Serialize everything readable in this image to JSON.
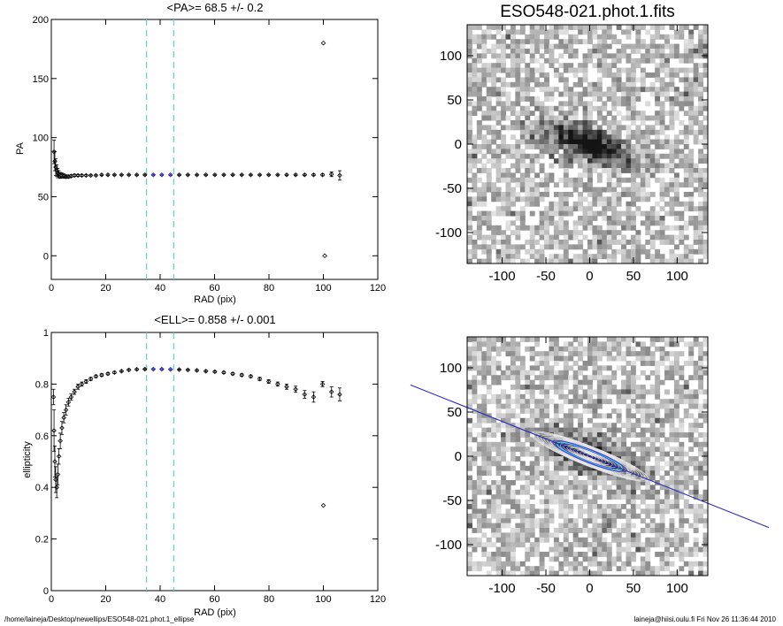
{
  "footer": {
    "path": "/home/laineja/Desktop/newellips/ESO548-021.phot.1_ellipse",
    "stamp": "laineja@hiisi.oulu.fi  Fri Nov 26 11:36:44 2010"
  },
  "chart_data": [
    {
      "type": "scatter",
      "title": "<PA>=  68.5 +/-   0.2",
      "xlabel": "RAD (pix)",
      "ylabel": "PA",
      "xlim": [
        0,
        120
      ],
      "ylim": [
        -20,
        200
      ],
      "xticks": [
        0,
        20,
        40,
        60,
        80,
        100,
        120
      ],
      "yticks": [
        0,
        50,
        100,
        150,
        200
      ],
      "vlines": [
        35,
        45
      ],
      "highlight_range": [
        35,
        45
      ],
      "x": [
        1.0,
        1.3,
        1.6,
        2.0,
        2.4,
        2.8,
        3.3,
        3.9,
        4.6,
        5.4,
        6.3,
        7.3,
        8.5,
        9.8,
        11.2,
        12.8,
        14.5,
        16.4,
        18.5,
        20.8,
        23.2,
        25.8,
        28.5,
        31.4,
        34.4,
        37.5,
        40.6,
        43.8,
        47.0,
        50.2,
        53.5,
        56.8,
        60.1,
        63.4,
        66.7,
        70.0,
        73.3,
        76.6,
        79.9,
        83.2,
        86.5,
        89.8,
        93.1,
        96.4,
        99.7,
        100.0,
        100.5,
        103.0,
        106.0
      ],
      "y": [
        88,
        80,
        75,
        72,
        70,
        69,
        68,
        68,
        67.5,
        67,
        67,
        67.5,
        68,
        68,
        68,
        68,
        68,
        68,
        68.5,
        68.5,
        68.5,
        68.5,
        68.5,
        68.5,
        68.5,
        68.5,
        68.5,
        68.5,
        68.5,
        68.5,
        68.5,
        68.5,
        68.5,
        68.5,
        68.5,
        68.5,
        68.5,
        68.5,
        68.5,
        68.5,
        68.5,
        68.5,
        68.5,
        68.5,
        68.5,
        180,
        0,
        69,
        68
      ],
      "yerr": [
        10,
        8,
        7,
        5,
        4,
        3,
        2.5,
        2,
        1.8,
        1.5,
        1.2,
        1,
        1,
        0.8,
        0.8,
        0.6,
        0.5,
        0.5,
        0.5,
        0.5,
        0.4,
        0.4,
        0.4,
        0.4,
        0.4,
        0.4,
        0.4,
        0.4,
        0.4,
        0.4,
        0.4,
        0.4,
        0.4,
        0.4,
        0.4,
        0.4,
        0.4,
        0.4,
        0.4,
        0.4,
        0.5,
        0.5,
        0.6,
        0.7,
        0.8,
        0,
        0,
        2,
        4
      ]
    },
    {
      "type": "scatter",
      "title": "<ELL>= 0.858 +/-  0.001",
      "xlabel": "RAD (pix)",
      "ylabel": "ellipticity",
      "xlim": [
        0,
        120
      ],
      "ylim": [
        0.0,
        1.0
      ],
      "xticks": [
        0,
        20,
        40,
        60,
        80,
        100,
        120
      ],
      "yticks": [
        0.0,
        0.2,
        0.4,
        0.6,
        0.8,
        1.0
      ],
      "vlines": [
        35,
        45
      ],
      "highlight_range": [
        35,
        45
      ],
      "x": [
        0.8,
        1.0,
        1.3,
        1.6,
        2.0,
        2.4,
        2.8,
        3.3,
        3.9,
        4.6,
        5.4,
        6.3,
        7.3,
        8.5,
        9.8,
        11.2,
        12.8,
        14.5,
        16.4,
        18.5,
        20.8,
        23.2,
        25.8,
        28.5,
        31.4,
        34.4,
        37.5,
        40.6,
        43.8,
        47.0,
        50.2,
        53.5,
        56.8,
        60.1,
        63.4,
        66.7,
        70.0,
        73.3,
        76.6,
        79.9,
        83.2,
        86.5,
        89.8,
        93.1,
        96.4,
        99.7,
        100.0,
        103.0,
        106.0
      ],
      "y": [
        0.75,
        0.62,
        0.5,
        0.43,
        0.4,
        0.45,
        0.52,
        0.58,
        0.63,
        0.67,
        0.7,
        0.73,
        0.75,
        0.77,
        0.79,
        0.8,
        0.81,
        0.82,
        0.83,
        0.835,
        0.84,
        0.845,
        0.85,
        0.855,
        0.857,
        0.858,
        0.858,
        0.858,
        0.857,
        0.856,
        0.855,
        0.853,
        0.85,
        0.848,
        0.845,
        0.84,
        0.835,
        0.83,
        0.82,
        0.81,
        0.8,
        0.79,
        0.78,
        0.76,
        0.75,
        0.8,
        0.33,
        0.77,
        0.76
      ],
      "yerr": [
        0.03,
        0.08,
        0.06,
        0.05,
        0.04,
        0.04,
        0.03,
        0.03,
        0.025,
        0.02,
        0.02,
        0.015,
        0.012,
        0.01,
        0.01,
        0.008,
        0.007,
        0.006,
        0.005,
        0.005,
        0.004,
        0.004,
        0.003,
        0.003,
        0.003,
        0.002,
        0.002,
        0.002,
        0.002,
        0.002,
        0.002,
        0.003,
        0.003,
        0.003,
        0.004,
        0.004,
        0.005,
        0.005,
        0.006,
        0.007,
        0.008,
        0.01,
        0.012,
        0.015,
        0.02,
        0.01,
        0,
        0.02,
        0.025
      ]
    },
    {
      "type": "heatmap",
      "title": "ESO548-021.phot.1.fits",
      "xlabel": "",
      "ylabel": "",
      "xlim": [
        -140,
        135
      ],
      "ylim": [
        -135,
        135
      ],
      "xticks": [
        -100,
        -50,
        0,
        50,
        100
      ],
      "yticks": [
        -100,
        -50,
        0,
        50,
        100
      ],
      "galaxy": {
        "center": [
          0,
          0
        ],
        "pa_deg": 68.5,
        "ellipticity": 0.858,
        "semi_major": 75
      }
    },
    {
      "type": "heatmap",
      "title": "",
      "xlabel": "",
      "ylabel": "",
      "xlim": [
        -140,
        135
      ],
      "ylim": [
        -135,
        135
      ],
      "xticks": [
        -100,
        -50,
        0,
        50,
        100
      ],
      "yticks": [
        -100,
        -50,
        0,
        50,
        100
      ],
      "galaxy": {
        "center": [
          0,
          0
        ],
        "pa_deg": 68.5,
        "ellipticity": 0.858,
        "semi_major": 75
      },
      "contour_radii": [
        4,
        8,
        12,
        16,
        20,
        24,
        28,
        32,
        36,
        40,
        44,
        48,
        52,
        56,
        60,
        64,
        68,
        72
      ],
      "highlight_radii": [
        35,
        40,
        45
      ]
    }
  ]
}
